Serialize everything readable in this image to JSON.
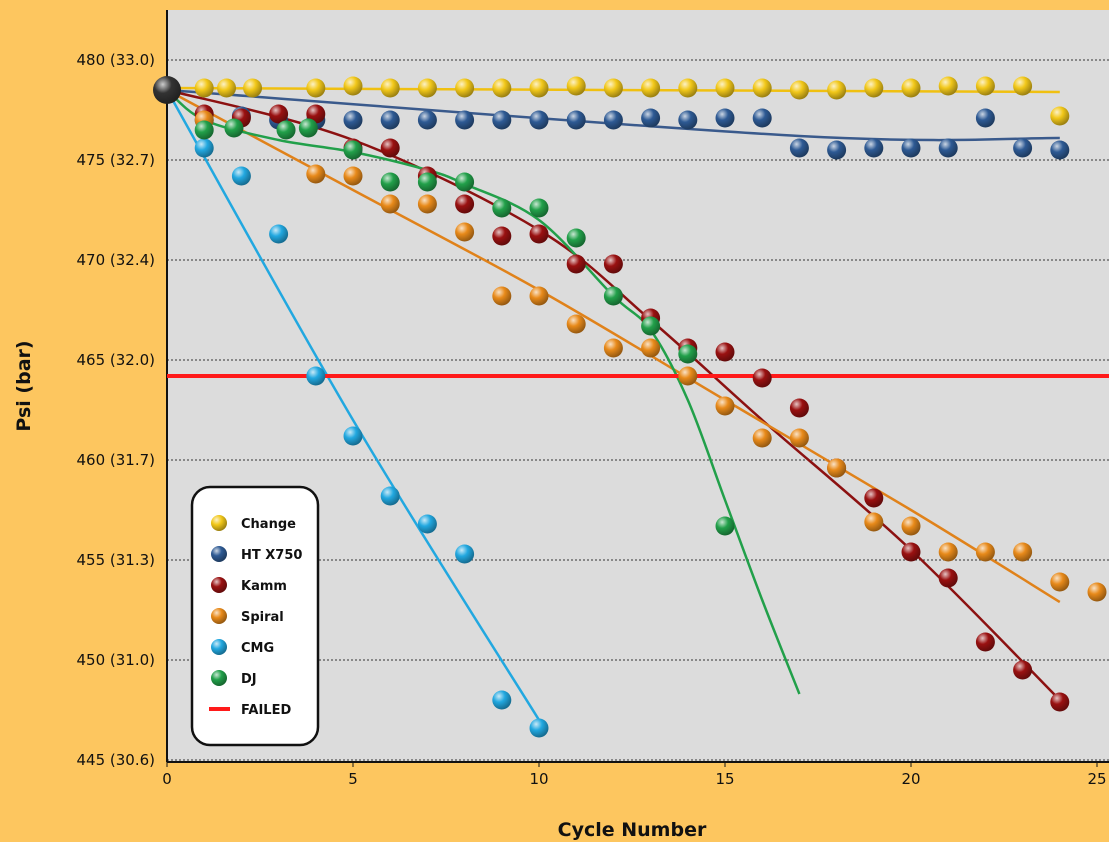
{
  "chart_data": {
    "type": "scatter",
    "title": "",
    "xlabel": "Cycle Number",
    "ylabel": "Psi (bar)",
    "xlim": [
      0,
      25
    ],
    "ylim": [
      445,
      482
    ],
    "x_ticks": [
      "0",
      "5",
      "10",
      "15",
      "20",
      "25"
    ],
    "y_ticks": [
      {
        "value": 480,
        "label": "480 (33.0)"
      },
      {
        "value": 475,
        "label": "475 (32.7)"
      },
      {
        "value": 470,
        "label": "470 (32.4)"
      },
      {
        "value": 465,
        "label": "465 (32.0)"
      },
      {
        "value": 460,
        "label": "460 (31.7)"
      },
      {
        "value": 455,
        "label": "455 (31.3)"
      },
      {
        "value": 450,
        "label": "450 (31.0)"
      },
      {
        "value": 445,
        "label": "445 (30.6)"
      }
    ],
    "grid": "horizontal dotted",
    "plot_background": "#DCDCDC",
    "legend_position": "bottom-left",
    "origin_point": {
      "x": 0,
      "y": 478.5,
      "color": "#111111"
    },
    "failed_threshold": {
      "name": "FAILED",
      "y": 464.2,
      "color": "#FF1A1A"
    },
    "series": [
      {
        "name": "Change",
        "color": "#F2C81A",
        "line_color": "#F0C010",
        "points": [
          [
            1,
            478.6
          ],
          [
            1.6,
            478.6
          ],
          [
            2.3,
            478.6
          ],
          [
            4,
            478.6
          ],
          [
            5,
            478.7
          ],
          [
            6,
            478.6
          ],
          [
            7,
            478.6
          ],
          [
            8,
            478.6
          ],
          [
            9,
            478.6
          ],
          [
            10,
            478.6
          ],
          [
            11,
            478.7
          ],
          [
            12,
            478.6
          ],
          [
            13,
            478.6
          ],
          [
            14,
            478.6
          ],
          [
            15,
            478.6
          ],
          [
            16,
            478.6
          ],
          [
            17,
            478.5
          ],
          [
            18,
            478.5
          ],
          [
            19,
            478.6
          ],
          [
            20,
            478.6
          ],
          [
            21,
            478.7
          ],
          [
            22,
            478.7
          ],
          [
            23,
            478.7
          ],
          [
            24,
            477.2
          ]
        ],
        "fit": [
          [
            0,
            478.6
          ],
          [
            24,
            478.4
          ]
        ]
      },
      {
        "name": "HT X750",
        "color": "#2E5A94",
        "line_color": "#3A5A8C",
        "points": [
          [
            1,
            477
          ],
          [
            2,
            477.2
          ],
          [
            3,
            477
          ],
          [
            4,
            477
          ],
          [
            5,
            477
          ],
          [
            6,
            477
          ],
          [
            7,
            477
          ],
          [
            8,
            477
          ],
          [
            9,
            477
          ],
          [
            10,
            477
          ],
          [
            11,
            477
          ],
          [
            12,
            477
          ],
          [
            13,
            477.1
          ],
          [
            14,
            477
          ],
          [
            15,
            477.1
          ],
          [
            16,
            477.1
          ],
          [
            17,
            475.6
          ],
          [
            18,
            475.5
          ],
          [
            19,
            475.6
          ],
          [
            20,
            475.6
          ],
          [
            21,
            475.6
          ],
          [
            22,
            477.1
          ],
          [
            23,
            475.6
          ],
          [
            24,
            475.5
          ]
        ],
        "fit": [
          [
            0,
            478.5
          ],
          [
            17,
            476.2
          ],
          [
            24,
            476.1
          ]
        ]
      },
      {
        "name": "Kamm",
        "color": "#9A1111",
        "line_color": "#8C1111",
        "points": [
          [
            1,
            477.3
          ],
          [
            2,
            477.1
          ],
          [
            3,
            477.3
          ],
          [
            4,
            477.3
          ],
          [
            5,
            475.6
          ],
          [
            6,
            475.6
          ],
          [
            7,
            474.2
          ],
          [
            8,
            472.8
          ],
          [
            9,
            471.2
          ],
          [
            10,
            471.3
          ],
          [
            11,
            469.8
          ],
          [
            12,
            469.8
          ],
          [
            13,
            467.1
          ],
          [
            14,
            465.6
          ],
          [
            15,
            465.4
          ],
          [
            16,
            464.1
          ],
          [
            17,
            462.6
          ],
          [
            18,
            459.6
          ],
          [
            19,
            458.1
          ],
          [
            20,
            455.4
          ],
          [
            21,
            454.1
          ],
          [
            22,
            450.9
          ],
          [
            23,
            449.5
          ],
          [
            24,
            447.9
          ]
        ],
        "fit": [
          [
            0,
            478.5
          ],
          [
            5,
            476
          ],
          [
            10,
            471.5
          ],
          [
            13,
            467
          ],
          [
            16,
            462
          ],
          [
            20,
            455.5
          ],
          [
            24,
            448
          ]
        ]
      },
      {
        "name": "Spiral",
        "color": "#E88A1A",
        "line_color": "#E0821A",
        "points": [
          [
            1,
            477
          ],
          [
            4,
            474.3
          ],
          [
            5,
            474.2
          ],
          [
            6,
            472.8
          ],
          [
            7,
            472.8
          ],
          [
            8,
            471.4
          ],
          [
            9,
            468.2
          ],
          [
            10,
            468.2
          ],
          [
            11,
            466.8
          ],
          [
            12,
            465.6
          ],
          [
            13,
            465.6
          ],
          [
            14,
            464.2
          ],
          [
            15,
            462.7
          ],
          [
            16,
            461.1
          ],
          [
            17,
            461.1
          ],
          [
            18,
            459.6
          ],
          [
            19,
            456.9
          ],
          [
            20,
            456.7
          ],
          [
            21,
            455.4
          ],
          [
            22,
            455.4
          ],
          [
            23,
            455.4
          ],
          [
            24,
            453.9
          ],
          [
            25,
            453.4
          ]
        ],
        "fit": [
          [
            0,
            478.5
          ],
          [
            5,
            473.5
          ],
          [
            10,
            468.5
          ],
          [
            15,
            463
          ],
          [
            20,
            457.5
          ],
          [
            24,
            452.9
          ]
        ]
      },
      {
        "name": "CMG",
        "color": "#22A8E0",
        "line_color": "#22A8E0",
        "points": [
          [
            1,
            475.6
          ],
          [
            2,
            474.2
          ],
          [
            3,
            471.3
          ],
          [
            4,
            464.2
          ],
          [
            5,
            461.2
          ],
          [
            6,
            458.2
          ],
          [
            7,
            456.8
          ],
          [
            8,
            455.3
          ],
          [
            9,
            448
          ],
          [
            10,
            446.6
          ]
        ],
        "fit": [
          [
            0,
            478.5
          ],
          [
            5,
            462
          ],
          [
            10,
            447
          ]
        ]
      },
      {
        "name": "DJ",
        "color": "#22A04A",
        "line_color": "#22A04A",
        "points": [
          [
            1,
            476.5
          ],
          [
            1.8,
            476.6
          ],
          [
            3.2,
            476.5
          ],
          [
            3.8,
            476.6
          ],
          [
            5,
            475.5
          ],
          [
            6,
            473.9
          ],
          [
            7,
            473.9
          ],
          [
            8,
            473.9
          ],
          [
            9,
            472.6
          ],
          [
            10,
            472.6
          ],
          [
            11,
            471.1
          ],
          [
            12,
            468.2
          ],
          [
            13,
            466.7
          ],
          [
            14,
            465.3
          ],
          [
            15,
            456.7
          ]
        ],
        "fit": [
          [
            0,
            478.5
          ],
          [
            1,
            477
          ],
          [
            3,
            476
          ],
          [
            5,
            475.4
          ],
          [
            7,
            474.5
          ],
          [
            8,
            473.8
          ],
          [
            10,
            472
          ],
          [
            12,
            468.2
          ],
          [
            13,
            466.5
          ],
          [
            14,
            463
          ],
          [
            15,
            458
          ],
          [
            16,
            453
          ],
          [
            17,
            448.3
          ]
        ]
      }
    ]
  }
}
